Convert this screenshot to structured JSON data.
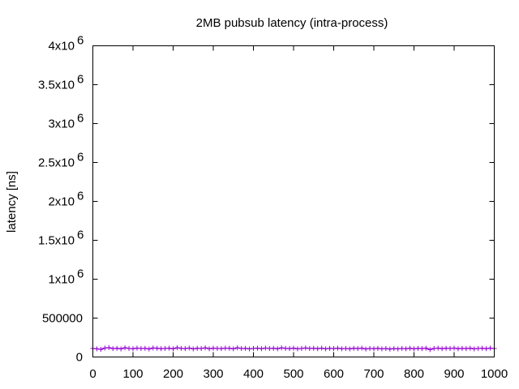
{
  "chart_data": {
    "type": "scatter",
    "title": "2MB pubsub latency (intra-process)",
    "xlabel": "",
    "ylabel": "latency [ns]",
    "xlim": [
      0,
      1000
    ],
    "ylim": [
      0,
      4000000
    ],
    "x_ticks": [
      {
        "value": 0,
        "label": "0"
      },
      {
        "value": 100,
        "label": "100"
      },
      {
        "value": 200,
        "label": "200"
      },
      {
        "value": 300,
        "label": "300"
      },
      {
        "value": 400,
        "label": "400"
      },
      {
        "value": 500,
        "label": "500"
      },
      {
        "value": 600,
        "label": "600"
      },
      {
        "value": 700,
        "label": "700"
      },
      {
        "value": 800,
        "label": "800"
      },
      {
        "value": 900,
        "label": "900"
      },
      {
        "value": 1000,
        "label": "1000"
      }
    ],
    "y_ticks": [
      {
        "value": 0,
        "base": "0",
        "exp": ""
      },
      {
        "value": 500000,
        "base": "500000",
        "exp": ""
      },
      {
        "value": 1000000,
        "base": "1x10",
        "exp": "6"
      },
      {
        "value": 1500000,
        "base": "1.5x10",
        "exp": "6"
      },
      {
        "value": 2000000,
        "base": "2x10",
        "exp": "6"
      },
      {
        "value": 2500000,
        "base": "2.5x10",
        "exp": "6"
      },
      {
        "value": 3000000,
        "base": "3x10",
        "exp": "6"
      },
      {
        "value": 3500000,
        "base": "3.5x10",
        "exp": "6"
      },
      {
        "value": 4000000,
        "base": "4x10",
        "exp": "6"
      }
    ],
    "grid": false,
    "legend": "none",
    "marker": "plus",
    "series": [
      {
        "color": "#9400d3",
        "x": [
          0,
          10,
          20,
          30,
          40,
          50,
          60,
          70,
          80,
          90,
          100,
          110,
          120,
          130,
          140,
          150,
          160,
          170,
          180,
          190,
          200,
          210,
          220,
          230,
          240,
          250,
          260,
          270,
          280,
          290,
          300,
          310,
          320,
          330,
          340,
          350,
          360,
          370,
          380,
          390,
          400,
          410,
          420,
          430,
          440,
          450,
          460,
          470,
          480,
          490,
          500,
          510,
          520,
          530,
          540,
          550,
          560,
          570,
          580,
          590,
          600,
          610,
          620,
          630,
          640,
          650,
          660,
          670,
          680,
          690,
          700,
          710,
          720,
          730,
          740,
          750,
          760,
          770,
          780,
          790,
          800,
          810,
          820,
          830,
          840,
          850,
          860,
          870,
          880,
          890,
          900,
          910,
          920,
          930,
          940,
          950,
          960,
          970,
          980,
          990,
          1000
        ],
        "y": [
          110000,
          105000,
          98000,
          115000,
          120000,
          108000,
          112000,
          104000,
          118000,
          110000,
          106000,
          114000,
          109000,
          111000,
          103000,
          116000,
          112000,
          107000,
          110000,
          113000,
          105000,
          119000,
          111000,
          108000,
          115000,
          104000,
          112000,
          109000,
          117000,
          106000,
          113000,
          110000,
          108000,
          114000,
          112000,
          105000,
          118000,
          109000,
          111000,
          104000,
          110000,
          113000,
          107000,
          115000,
          109000,
          112000,
          106000,
          117000,
          111000,
          108000,
          113000,
          105000,
          110000,
          116000,
          109000,
          112000,
          107000,
          114000,
          105000,
          111000,
          108000,
          113000,
          106000,
          110000,
          104000,
          112000,
          108000,
          114000,
          103000,
          110000,
          107000,
          111000,
          105000,
          109000,
          102000,
          108000,
          104000,
          110000,
          106000,
          112000,
          105000,
          111000,
          108000,
          113000,
          95000,
          110000,
          114000,
          107000,
          112000,
          109000,
          115000,
          106000,
          111000,
          108000,
          113000,
          104000,
          110000,
          112000,
          107000,
          114000,
          109000
        ]
      }
    ]
  }
}
